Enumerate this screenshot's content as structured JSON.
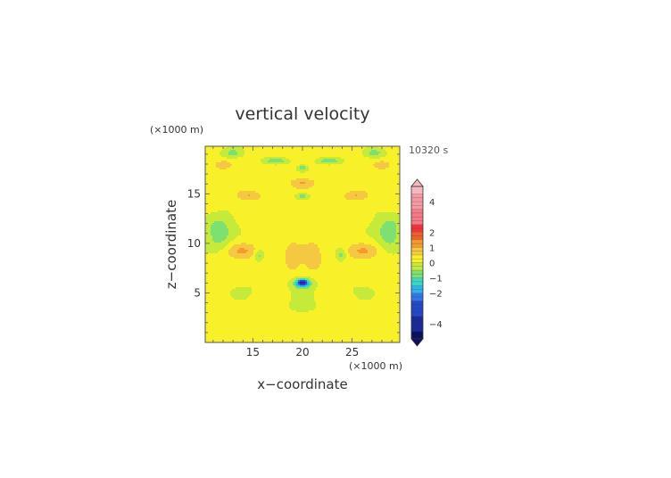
{
  "chart_data": {
    "type": "heatmap",
    "title": "vertical velocity",
    "xlabel": "x−coordinate",
    "ylabel": "z−coordinate",
    "x_unit": "(×1000 m)",
    "y_unit": "(×1000 m)",
    "time_label": "10320 s",
    "xlim": [
      10.2,
      29.8
    ],
    "ylim": [
      0,
      19.8
    ],
    "x_ticks": [
      15,
      20,
      25
    ],
    "y_ticks": [
      5,
      10,
      15
    ],
    "x_tick_labels": [
      "15",
      "20",
      "25"
    ],
    "y_tick_labels": [
      "5",
      "10",
      "15"
    ],
    "colorbar": {
      "min": -5,
      "max": 5,
      "tick_values": [
        4,
        2,
        1,
        0,
        -1,
        -2,
        -4
      ],
      "tick_labels": [
        "4",
        "2",
        "1",
        "0",
        "−1",
        "−2",
        "−4"
      ],
      "levels": [
        {
          "from": 4.5,
          "to": 5,
          "color": "#f6b8c0"
        },
        {
          "from": 3.5,
          "to": 4.5,
          "color": "#f59aa4"
        },
        {
          "from": 2.5,
          "to": 3.5,
          "color": "#f37a86"
        },
        {
          "from": 2,
          "to": 2.5,
          "color": "#f0343c"
        },
        {
          "from": 1.5,
          "to": 2,
          "color": "#f0602a"
        },
        {
          "from": 1,
          "to": 1.5,
          "color": "#f59a2c"
        },
        {
          "from": 0.5,
          "to": 1,
          "color": "#f5c842"
        },
        {
          "from": 0,
          "to": 0.5,
          "color": "#f8f028"
        },
        {
          "from": -0.5,
          "to": 0,
          "color": "#c6ea3a"
        },
        {
          "from": -1,
          "to": -0.5,
          "color": "#7ee070"
        },
        {
          "from": -1.5,
          "to": -1,
          "color": "#3ed6c2"
        },
        {
          "from": -2,
          "to": -1.5,
          "color": "#2cb4e8"
        },
        {
          "from": -2.5,
          "to": -2,
          "color": "#2e78e8"
        },
        {
          "from": -3.5,
          "to": -2.5,
          "color": "#2448c8"
        },
        {
          "from": -4.5,
          "to": -3.5,
          "color": "#1a2a9a"
        },
        {
          "from": -5,
          "to": -4.5,
          "color": "#0c1060"
        }
      ]
    },
    "field_features": [
      {
        "x": 20,
        "z": 6,
        "w": -1.9,
        "rx": 0.9,
        "rz": 0.5
      },
      {
        "x": 20,
        "z": 6,
        "w": -2.3,
        "rx": 0.5,
        "rz": 0.3
      },
      {
        "x": 11.5,
        "z": 11,
        "w": -1.1,
        "rx": 1.2,
        "rz": 1.5
      },
      {
        "x": 28.8,
        "z": 11,
        "w": -1.1,
        "rx": 1.2,
        "rz": 1.5
      },
      {
        "x": 15.6,
        "z": 8.8,
        "w": -0.9,
        "rx": 0.5,
        "rz": 0.6
      },
      {
        "x": 23.9,
        "z": 8.8,
        "w": -0.9,
        "rx": 0.5,
        "rz": 0.6
      },
      {
        "x": 13,
        "z": 19.1,
        "w": -1.0,
        "rx": 1.0,
        "rz": 0.5
      },
      {
        "x": 17.4,
        "z": 18.3,
        "w": -1.0,
        "rx": 1.2,
        "rz": 0.3
      },
      {
        "x": 20,
        "z": 17.6,
        "w": -1.0,
        "rx": 0.5,
        "rz": 0.3
      },
      {
        "x": 20,
        "z": 14.8,
        "w": -1.0,
        "rx": 0.6,
        "rz": 0.3
      },
      {
        "x": 22.6,
        "z": 18.3,
        "w": -1.0,
        "rx": 1.2,
        "rz": 0.3
      },
      {
        "x": 27.2,
        "z": 19.1,
        "w": -1.0,
        "rx": 1.0,
        "rz": 0.5
      },
      {
        "x": 14,
        "z": 9.2,
        "w": 0.8,
        "rx": 1.6,
        "rz": 0.8
      },
      {
        "x": 26,
        "z": 9.2,
        "w": 0.8,
        "rx": 1.6,
        "rz": 0.8
      },
      {
        "x": 19.1,
        "z": 8.6,
        "w": 0.75,
        "rx": 0.9,
        "rz": 1.5
      },
      {
        "x": 21,
        "z": 8.6,
        "w": 0.75,
        "rx": 0.9,
        "rz": 1.5
      },
      {
        "x": 14.6,
        "z": 14.8,
        "w": 0.8,
        "rx": 1.2,
        "rz": 0.5
      },
      {
        "x": 25.4,
        "z": 14.8,
        "w": 0.8,
        "rx": 1.2,
        "rz": 0.5
      },
      {
        "x": 20,
        "z": 16.1,
        "w": 0.8,
        "rx": 1.2,
        "rz": 0.5
      },
      {
        "x": 12,
        "z": 17.9,
        "w": 0.8,
        "rx": 0.8,
        "rz": 0.4
      },
      {
        "x": 28,
        "z": 17.9,
        "w": 0.8,
        "rx": 0.8,
        "rz": 0.4
      },
      {
        "x": 20,
        "z": 3.5,
        "w": -0.4,
        "rx": 1.6,
        "rz": 0.9
      }
    ]
  }
}
